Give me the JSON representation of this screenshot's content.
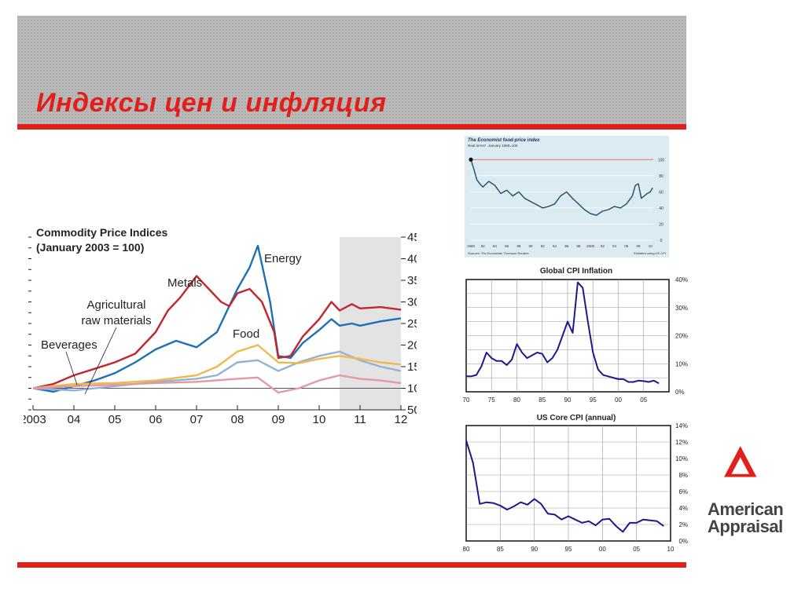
{
  "slide": {
    "title": "Индексы цен и инфляция",
    "accent_color": "#e0201b"
  },
  "logo": {
    "line1": "American",
    "line2": "Appraisal"
  },
  "chart_data": [
    {
      "id": "commodity",
      "type": "line",
      "title": "Commodity Price Indices",
      "subtitle": "(January 2003 = 100)",
      "x_ticks": [
        "2003",
        "04",
        "05",
        "06",
        "07",
        "08",
        "09",
        "10",
        "11",
        "12"
      ],
      "xlim": [
        2003,
        2012
      ],
      "ylim": [
        50,
        450
      ],
      "y_ticks": [
        50,
        100,
        150,
        200,
        250,
        300,
        350,
        400,
        450
      ],
      "forecast_shade": [
        2010.5,
        2012
      ],
      "series": [
        {
          "name": "Energy",
          "color": "#1f6fb5",
          "x": [
            2003,
            2003.5,
            2004,
            2004.5,
            2005,
            2005.5,
            2006,
            2006.5,
            2007,
            2007.5,
            2008,
            2008.3,
            2008.5,
            2008.8,
            2009,
            2009.3,
            2009.6,
            2010,
            2010.3,
            2010.5,
            2010.8,
            2011,
            2011.5,
            2012
          ],
          "y": [
            100,
            92,
            105,
            118,
            135,
            160,
            190,
            210,
            195,
            230,
            330,
            380,
            430,
            300,
            175,
            170,
            205,
            235,
            260,
            245,
            250,
            245,
            255,
            262
          ]
        },
        {
          "name": "Metals",
          "color": "#c1272d",
          "x": [
            2003,
            2003.5,
            2004,
            2004.5,
            2005,
            2005.5,
            2006,
            2006.3,
            2006.6,
            2007,
            2007.3,
            2007.6,
            2007.8,
            2008,
            2008.3,
            2008.6,
            2008.9,
            2009,
            2009.3,
            2009.6,
            2010,
            2010.3,
            2010.5,
            2010.8,
            2011,
            2011.5,
            2012
          ],
          "y": [
            100,
            110,
            130,
            145,
            160,
            180,
            230,
            280,
            310,
            360,
            330,
            300,
            290,
            320,
            330,
            300,
            230,
            170,
            175,
            220,
            260,
            300,
            280,
            295,
            285,
            288,
            282
          ]
        },
        {
          "name": "Agricultural raw materials",
          "color": "#8fb3d9",
          "x": [
            2003,
            2004,
            2005,
            2006,
            2007,
            2007.5,
            2008,
            2008.5,
            2009,
            2009.5,
            2010,
            2010.5,
            2011,
            2011.5,
            2012
          ],
          "y": [
            100,
            95,
            105,
            115,
            122,
            130,
            160,
            165,
            140,
            160,
            175,
            185,
            165,
            150,
            140
          ]
        },
        {
          "name": "Food",
          "color": "#f2b84b",
          "x": [
            2003,
            2004,
            2005,
            2006,
            2007,
            2007.5,
            2008,
            2008.5,
            2009,
            2009.5,
            2010,
            2010.5,
            2011,
            2011.5,
            2012
          ],
          "y": [
            100,
            110,
            112,
            118,
            130,
            150,
            185,
            200,
            160,
            158,
            168,
            175,
            168,
            160,
            155
          ]
        },
        {
          "name": "Beverages",
          "color": "#e39aa0",
          "x": [
            2003,
            2004,
            2005,
            2006,
            2007,
            2008,
            2008.5,
            2009,
            2009.5,
            2010,
            2010.5,
            2011,
            2011.5,
            2012
          ],
          "y": [
            100,
            105,
            108,
            112,
            115,
            122,
            125,
            90,
            100,
            118,
            130,
            122,
            118,
            112
          ]
        }
      ],
      "labels": [
        "Energy",
        "Metals",
        "Agricultural",
        "raw materials",
        "Beverages",
        "Food"
      ]
    },
    {
      "id": "economist",
      "type": "line",
      "title": "The Economist food-price index",
      "subtitle": "Real terms*, January 1980=100",
      "x_ticks": [
        "1980",
        "82",
        "84",
        "86",
        "88",
        "90",
        "92",
        "94",
        "96",
        "98",
        "2000",
        "02",
        "04",
        "06",
        "08",
        "10"
      ],
      "y_ticks": [
        0,
        20,
        40,
        60,
        80,
        100
      ],
      "ylim": [
        0,
        110
      ],
      "xlim": [
        1980,
        2010.5
      ],
      "source": "Sources: The Economist; Thomson Reuters",
      "footnote": "*Deflated using US CPI",
      "series": [
        {
          "name": "",
          "color": "#1d4f63",
          "x": [
            1980,
            1980.5,
            1981,
            1981.5,
            1982,
            1983,
            1984,
            1985,
            1986,
            1987,
            1988,
            1989,
            1990,
            1991,
            1992,
            1993,
            1994,
            1995,
            1996,
            1997,
            1998,
            1999,
            2000,
            2001,
            2002,
            2003,
            2004,
            2005,
            2006,
            2007,
            2007.5,
            2008,
            2008.5,
            2009,
            2009.5,
            2010,
            2010.4
          ],
          "y": [
            100,
            88,
            75,
            70,
            66,
            73,
            68,
            58,
            62,
            55,
            60,
            52,
            48,
            44,
            40,
            42,
            45,
            55,
            60,
            52,
            45,
            38,
            33,
            31,
            36,
            38,
            42,
            40,
            45,
            55,
            68,
            70,
            52,
            55,
            58,
            60,
            65
          ]
        }
      ]
    },
    {
      "id": "global_cpi",
      "type": "line",
      "title": "Global CPI Inflation",
      "xlim": [
        1970,
        2010
      ],
      "ylim": [
        0,
        40
      ],
      "x_ticks": [
        "70",
        "75",
        "80",
        "85",
        "90",
        "95",
        "00",
        "05"
      ],
      "y_ticks": [
        "0%",
        "10%",
        "20%",
        "30%",
        "40%"
      ],
      "series": [
        {
          "name": "",
          "color": "#1a1a8c",
          "x": [
            1970,
            1971,
            1972,
            1973,
            1974,
            1975,
            1976,
            1977,
            1978,
            1979,
            1980,
            1981,
            1982,
            1983,
            1984,
            1985,
            1986,
            1987,
            1988,
            1989,
            1990,
            1991,
            1992,
            1993,
            1994,
            1995,
            1996,
            1997,
            1998,
            1999,
            2000,
            2001,
            2002,
            2003,
            2004,
            2005,
            2006,
            2007,
            2008
          ],
          "y": [
            5.5,
            5.5,
            6,
            9,
            14,
            12,
            11,
            11,
            9.5,
            11.5,
            17,
            14,
            12,
            13,
            14,
            13.5,
            10.5,
            12,
            15,
            20,
            25,
            21,
            39,
            37,
            25,
            14,
            8,
            6,
            5.5,
            5,
            4.5,
            4.5,
            3.5,
            3.5,
            4,
            3.8,
            3.5,
            4,
            3
          ]
        }
      ]
    },
    {
      "id": "us_core_cpi",
      "type": "line",
      "title": "US Core CPI (annual)",
      "xlim": [
        1980,
        2010
      ],
      "ylim": [
        0,
        14
      ],
      "x_ticks": [
        "80",
        "85",
        "90",
        "95",
        "00",
        "05",
        "10"
      ],
      "y_ticks": [
        "0%",
        "2%",
        "4%",
        "6%",
        "8%",
        "10%",
        "12%",
        "14%"
      ],
      "series": [
        {
          "name": "",
          "color": "#1a1a8c",
          "x": [
            1980,
            1981,
            1982,
            1983,
            1984,
            1985,
            1986,
            1987,
            1988,
            1989,
            1990,
            1991,
            1992,
            1993,
            1994,
            1995,
            1996,
            1997,
            1998,
            1999,
            2000,
            2001,
            2002,
            2003,
            2004,
            2005,
            2006,
            2007,
            2008,
            2009
          ],
          "y": [
            12.2,
            9.5,
            4.5,
            4.7,
            4.6,
            4.3,
            3.8,
            4.2,
            4.7,
            4.4,
            5.1,
            4.5,
            3.3,
            3.2,
            2.6,
            3,
            2.6,
            2.2,
            2.4,
            1.9,
            2.6,
            2.7,
            1.8,
            1.1,
            2.2,
            2.2,
            2.6,
            2.5,
            2.4,
            1.8
          ]
        }
      ]
    }
  ]
}
